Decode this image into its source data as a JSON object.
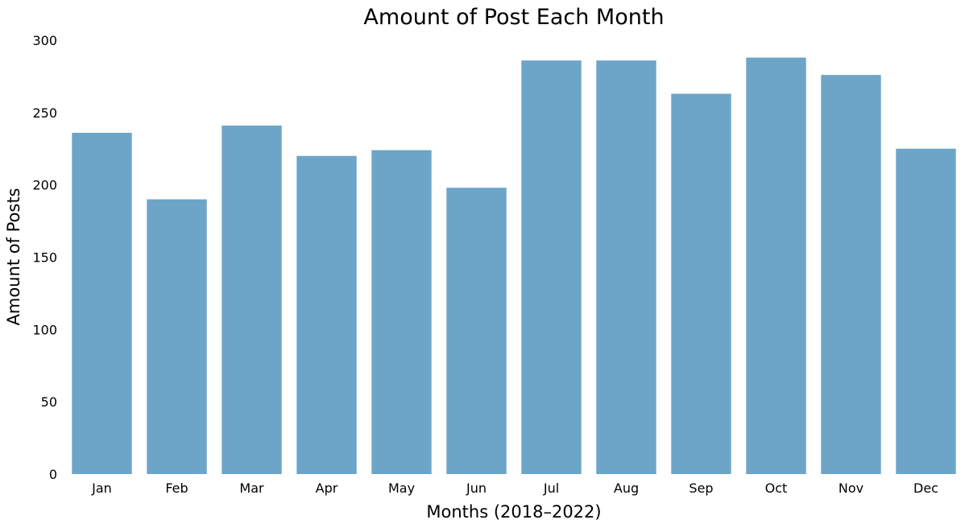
{
  "chart_data": {
    "type": "bar",
    "title": "Amount of Post Each Month",
    "xlabel": "Months (2018–2022)",
    "ylabel": "Amount of Posts",
    "categories": [
      "Jan",
      "Feb",
      "Mar",
      "Apr",
      "May",
      "Jun",
      "Jul",
      "Aug",
      "Sep",
      "Oct",
      "Nov",
      "Dec"
    ],
    "values": [
      236,
      190,
      241,
      220,
      224,
      198,
      286,
      286,
      263,
      288,
      276,
      225
    ],
    "ylim": [
      0,
      300
    ],
    "yticks": [
      0,
      50,
      100,
      150,
      200,
      250,
      300
    ],
    "grid": false,
    "bar_color": "#6ca5c7"
  }
}
